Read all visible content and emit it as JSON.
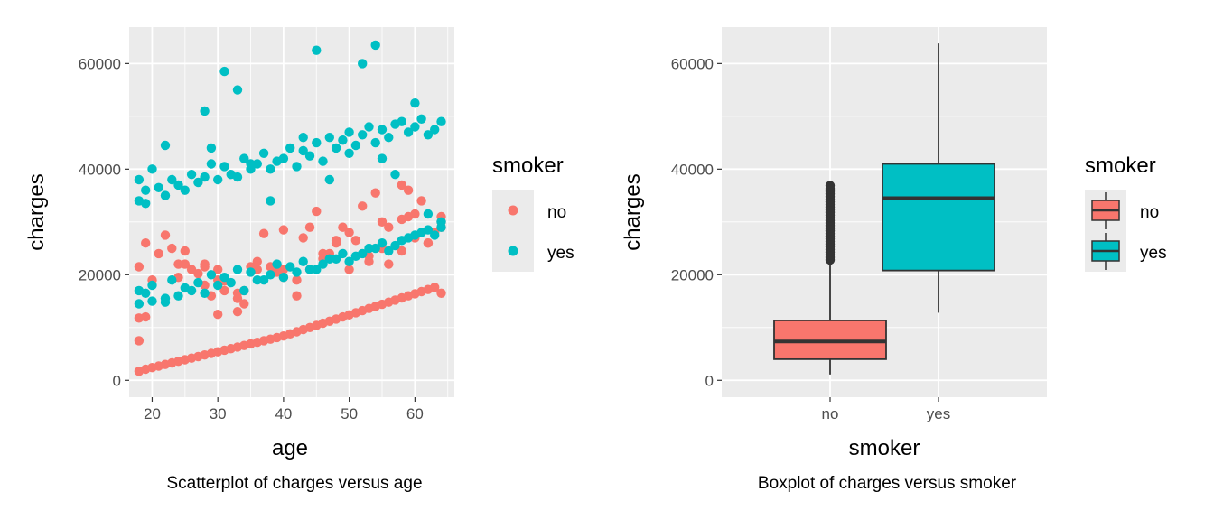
{
  "chart_data": [
    {
      "type": "scatter",
      "caption": "Scatterplot of charges versus age",
      "xlabel": "age",
      "ylabel": "charges",
      "xlim": [
        16.5,
        66
      ],
      "ylim": [
        -3200,
        66900
      ],
      "x_ticks": [
        "20",
        "30",
        "40",
        "50",
        "60"
      ],
      "y_ticks": [
        "0",
        "20000",
        "40000",
        "60000"
      ],
      "x_tick_values": [
        20,
        30,
        40,
        50,
        60
      ],
      "y_tick_values": [
        0,
        20000,
        40000,
        60000
      ],
      "grid": true,
      "legend": {
        "title": "smoker",
        "position": "right",
        "entries": [
          "no",
          "yes"
        ]
      },
      "colors": {
        "no": "#F8766D",
        "yes": "#00BFC4",
        "panel": "#EBEBEB",
        "grid": "#FFFFFF"
      },
      "series": [
        {
          "name": "no",
          "x": [
            18,
            19,
            20,
            21,
            22,
            23,
            24,
            25,
            26,
            27,
            28,
            29,
            30,
            31,
            32,
            33,
            34,
            35,
            36,
            37,
            38,
            39,
            40,
            41,
            42,
            43,
            44,
            45,
            46,
            47,
            48,
            49,
            50,
            51,
            52,
            53,
            54,
            55,
            56,
            57,
            58,
            59,
            60,
            61,
            62,
            63,
            64,
            18,
            18,
            19,
            21,
            23,
            25,
            25,
            27,
            28,
            30,
            30,
            31,
            33,
            33,
            34,
            35,
            37,
            38,
            40,
            40,
            43,
            44,
            45,
            47,
            48,
            49,
            50,
            52,
            54,
            55,
            56,
            58,
            59,
            60,
            62,
            64,
            19,
            22,
            24,
            26,
            28,
            29,
            31,
            34,
            36,
            40,
            42,
            44,
            46,
            48,
            51,
            53,
            56,
            58,
            59,
            61,
            63,
            64,
            18,
            20,
            24,
            28,
            30,
            33,
            36,
            39,
            42,
            46,
            50,
            53,
            55,
            58,
            60,
            62,
            64
          ],
          "y": [
            1700,
            2100,
            2400,
            2700,
            3000,
            3300,
            3600,
            3900,
            4200,
            4500,
            4800,
            5100,
            5400,
            5700,
            6000,
            6300,
            6600,
            6900,
            7200,
            7500,
            7800,
            8100,
            8400,
            8800,
            9200,
            9600,
            10000,
            10400,
            10800,
            11200,
            11600,
            12000,
            12400,
            12800,
            13200,
            13600,
            14000,
            14400,
            14800,
            15200,
            15600,
            16000,
            16400,
            16800,
            17200,
            17600,
            16500,
            21500,
            11800,
            26000,
            24000,
            25000,
            24500,
            22000,
            20200,
            22000,
            19000,
            21000,
            17000,
            15500,
            13000,
            17000,
            21500,
            27800,
            21500,
            28500,
            19500,
            27000,
            29000,
            32000,
            24000,
            26500,
            29000,
            28000,
            33000,
            35500,
            30000,
            22000,
            30500,
            31000,
            31500,
            26000,
            29000,
            12000,
            27500,
            19500,
            21000,
            18000,
            16000,
            18800,
            14500,
            22500,
            21000,
            16000,
            21000,
            24000,
            26000,
            26500,
            22500,
            29000,
            37000,
            36000,
            34000,
            28000,
            31000,
            7500,
            19000,
            22000,
            21500,
            12500,
            16500,
            21000,
            20500,
            19000,
            23000,
            21000,
            23500,
            25000,
            24500,
            27000,
            26000,
            30000
          ]
        },
        {
          "name": "yes",
          "x": [
            18,
            18,
            19,
            19,
            20,
            21,
            22,
            23,
            24,
            25,
            26,
            27,
            28,
            29,
            30,
            31,
            32,
            33,
            34,
            35,
            36,
            37,
            38,
            39,
            40,
            41,
            42,
            43,
            44,
            45,
            46,
            47,
            48,
            49,
            50,
            51,
            52,
            53,
            54,
            55,
            56,
            57,
            58,
            59,
            60,
            61,
            62,
            63,
            64,
            18,
            19,
            20,
            22,
            23,
            25,
            27,
            29,
            31,
            33,
            35,
            37,
            39,
            41,
            43,
            45,
            47,
            49,
            51,
            53,
            55,
            57,
            59,
            61,
            63,
            64,
            18,
            20,
            22,
            24,
            26,
            28,
            30,
            32,
            34,
            36,
            38,
            40,
            42,
            44,
            46,
            48,
            50,
            52,
            54,
            56,
            58,
            60,
            62,
            64,
            28,
            31,
            33,
            22,
            29,
            35,
            45,
            52,
            54,
            60,
            38,
            43,
            47,
            50,
            55,
            57,
            62
          ],
          "y": [
            34000,
            38000,
            36000,
            33500,
            40000,
            36500,
            35000,
            38000,
            37000,
            36000,
            39000,
            37500,
            38500,
            41000,
            38000,
            40500,
            39000,
            38500,
            42000,
            40000,
            41000,
            43000,
            40000,
            41500,
            42000,
            44000,
            40500,
            43500,
            42500,
            45000,
            41500,
            46000,
            44000,
            45500,
            47000,
            44500,
            46500,
            48000,
            45000,
            47500,
            46000,
            48500,
            49000,
            47000,
            48000,
            49500,
            46500,
            47500,
            49000,
            17000,
            16500,
            18000,
            15500,
            19000,
            17500,
            18500,
            20000,
            19500,
            21000,
            20500,
            19000,
            22000,
            21500,
            22500,
            21000,
            23000,
            24000,
            23500,
            25000,
            26000,
            25500,
            27000,
            28000,
            27500,
            29000,
            14500,
            15000,
            14800,
            16000,
            17000,
            16500,
            18000,
            18500,
            17000,
            19000,
            20000,
            19500,
            20500,
            21000,
            22000,
            23000,
            22500,
            24000,
            25000,
            24500,
            26500,
            27500,
            28500,
            30000,
            51000,
            58500,
            55000,
            44500,
            44000,
            41000,
            62500,
            60000,
            63500,
            52500,
            34000,
            46000,
            38000,
            43000,
            42000,
            39000,
            31500
          ]
        }
      ]
    },
    {
      "type": "box",
      "caption": "Boxplot of charges versus smoker",
      "xlabel": "smoker",
      "ylabel": "charges",
      "categories": [
        "no",
        "yes"
      ],
      "ylim": [
        -3200,
        66900
      ],
      "y_ticks": [
        "0",
        "20000",
        "40000",
        "60000"
      ],
      "y_tick_values": [
        0,
        20000,
        40000,
        60000
      ],
      "grid": true,
      "legend": {
        "title": "smoker",
        "position": "right",
        "entries": [
          "no",
          "yes"
        ]
      },
      "colors": {
        "no": "#F8766D",
        "yes": "#00BFC4",
        "panel": "#EBEBEB",
        "grid": "#FFFFFF"
      },
      "boxes": [
        {
          "name": "no",
          "min": 1100,
          "q1": 4000,
          "median": 7350,
          "q3": 11350,
          "max": 22400,
          "outliers": [
            22800,
            23300,
            23800,
            24300,
            24800,
            25300,
            25800,
            26300,
            26800,
            27300,
            27800,
            28300,
            28800,
            29300,
            29800,
            30300,
            30800,
            31300,
            31800,
            32300,
            32800,
            33300,
            33800,
            34300,
            34800,
            35300,
            35800,
            36300,
            36900
          ]
        },
        {
          "name": "yes",
          "min": 12800,
          "q1": 20800,
          "median": 34500,
          "q3": 41000,
          "max": 63800,
          "outliers": []
        }
      ]
    }
  ]
}
